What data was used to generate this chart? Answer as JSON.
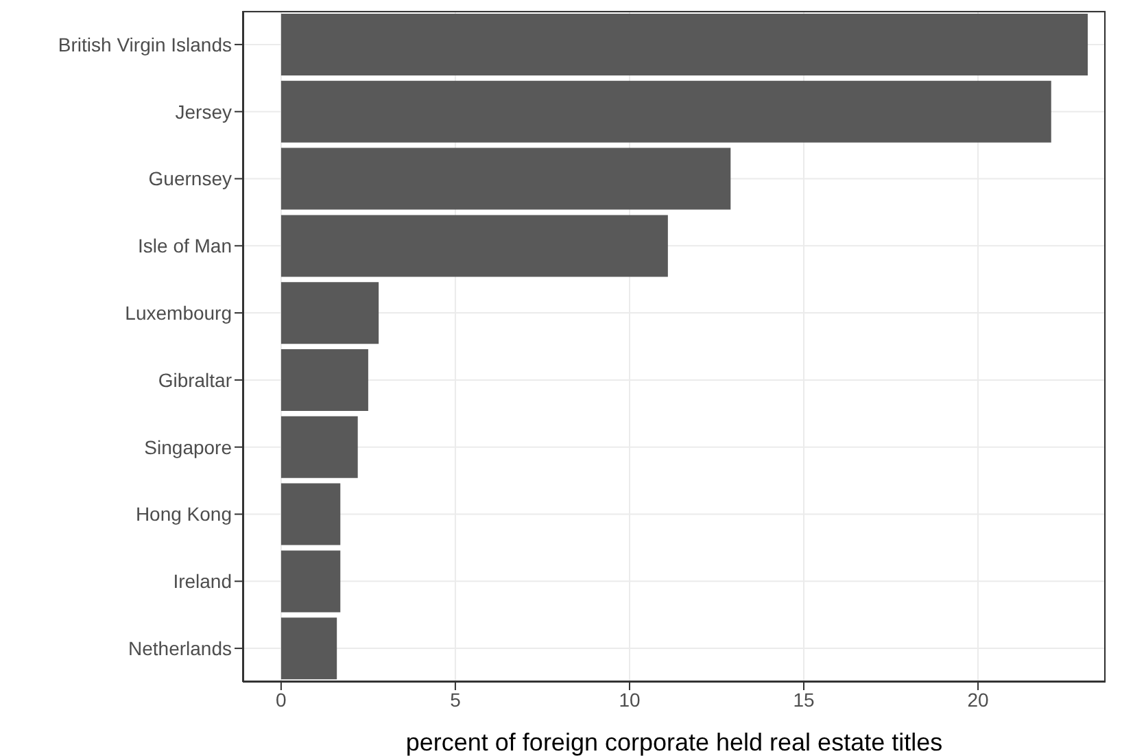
{
  "chart_data": {
    "type": "bar",
    "orientation": "horizontal",
    "xlabel": "percent of foreign corporate held real estate titles",
    "categories": [
      "British Virgin Islands",
      "Jersey",
      "Guernsey",
      "Isle of Man",
      "Luxembourg",
      "Gibraltar",
      "Singapore",
      "Hong Kong",
      "Ireland",
      "Netherlands"
    ],
    "values": [
      23.15,
      22.1,
      12.9,
      11.1,
      2.8,
      2.5,
      2.2,
      1.7,
      1.7,
      1.6
    ],
    "color": "#595959",
    "xlim": [
      -1.1,
      23.66
    ],
    "xticks": [
      0,
      5,
      10,
      15,
      20
    ],
    "grid": true
  }
}
